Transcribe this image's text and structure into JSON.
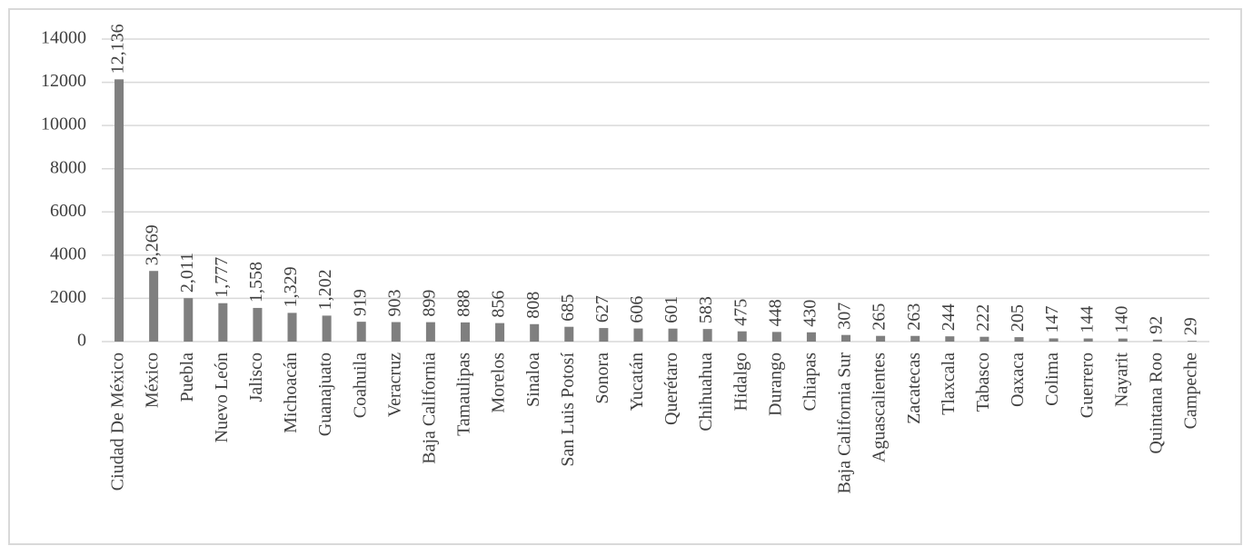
{
  "chart_data": {
    "type": "bar",
    "categories": [
      "Ciudad De México",
      "México",
      "Puebla",
      "Nuevo León",
      "Jalisco",
      "Michoacán",
      "Guanajuato",
      "Coahuila",
      "Veracruz",
      "Baja California",
      "Tamaulipas",
      "Morelos",
      "Sinaloa",
      "San Luis Potosí",
      "Sonora",
      "Yucatán",
      "Querétaro",
      "Chihuahua",
      "Hidalgo",
      "Durango",
      "Chiapas",
      "Baja California Sur",
      "Aguascalientes",
      "Zacatecas",
      "Tlaxcala",
      "Tabasco",
      "Oaxaca",
      "Colima",
      "Guerrero",
      "Nayarit",
      "Quintana Roo",
      "Campeche"
    ],
    "values": [
      12136,
      3269,
      2011,
      1777,
      1558,
      1329,
      1202,
      919,
      903,
      899,
      888,
      856,
      808,
      685,
      627,
      606,
      601,
      583,
      475,
      448,
      430,
      307,
      265,
      263,
      244,
      222,
      205,
      147,
      144,
      140,
      92,
      29
    ],
    "value_labels": [
      "12,136",
      "3,269",
      "2,011",
      "1,777",
      "1,558",
      "1,329",
      "1,202",
      "919",
      "903",
      "899",
      "888",
      "856",
      "808",
      "685",
      "627",
      "606",
      "601",
      "583",
      "475",
      "448",
      "430",
      "307",
      "265",
      "263",
      "244",
      "222",
      "205",
      "147",
      "144",
      "140",
      "92",
      "29"
    ],
    "color": "#7f7f7f",
    "ylim": [
      0,
      14000
    ],
    "yticks": [
      0,
      2000,
      4000,
      6000,
      8000,
      10000,
      12000,
      14000
    ],
    "grid": true
  }
}
